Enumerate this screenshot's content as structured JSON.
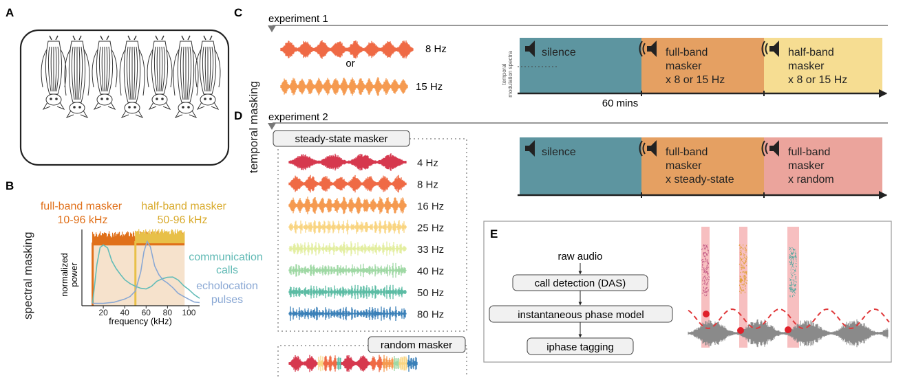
{
  "panels": {
    "a": "A",
    "b": "B",
    "c": "C",
    "d": "D",
    "e": "E"
  },
  "side_labels": {
    "spectral": "spectral masking",
    "temporal": "temporal masking"
  },
  "panel_b": {
    "full_band_title": "full-band masker",
    "full_band_range": "10-96 kHz",
    "half_band_title": "half-band masker",
    "half_band_range": "50-96 kHz",
    "comm_line1": "communication",
    "comm_line2": "calls",
    "echo_line1": "echolocation",
    "echo_line2": "pulses",
    "ylabel_line1": "normalized",
    "ylabel_line2": "power",
    "xlabel": "frequency (kHz)",
    "colors": {
      "full": "#e0701a",
      "half": "#e8c048",
      "comm": "#62bcb8",
      "echo": "#8aa8d4",
      "fill": "#f6e2cc"
    }
  },
  "chart_data": {
    "type": "line",
    "xlabel": "frequency (kHz)",
    "ylabel": "normalized power",
    "xlim": [
      0,
      110
    ],
    "ylim": [
      0,
      1
    ],
    "x_ticks": [
      20,
      40,
      60,
      80,
      100
    ],
    "series": [
      {
        "name": "communication calls",
        "x": [
          10,
          14,
          17,
          20,
          24,
          28,
          32,
          36,
          40,
          45,
          50,
          55,
          60,
          65,
          70,
          75,
          80,
          85,
          90,
          95,
          100,
          105,
          110
        ],
        "values": [
          0.02,
          0.55,
          0.78,
          0.84,
          0.78,
          0.6,
          0.5,
          0.42,
          0.35,
          0.3,
          0.27,
          0.25,
          0.24,
          0.27,
          0.33,
          0.38,
          0.4,
          0.38,
          0.34,
          0.28,
          0.22,
          0.16,
          0.1
        ]
      },
      {
        "name": "echolocation pulses",
        "x": [
          10,
          20,
          30,
          40,
          45,
          50,
          55,
          58,
          61,
          64,
          68,
          72,
          76,
          80,
          85,
          90,
          95,
          100,
          105,
          110
        ],
        "values": [
          0.02,
          0.03,
          0.05,
          0.08,
          0.12,
          0.2,
          0.45,
          0.75,
          0.88,
          0.8,
          0.55,
          0.42,
          0.35,
          0.3,
          0.24,
          0.18,
          0.13,
          0.09,
          0.06,
          0.04
        ]
      },
      {
        "name": "full-band masker",
        "x": [
          10,
          96
        ],
        "values": [
          0.97,
          0.97
        ]
      },
      {
        "name": "half-band masker",
        "x": [
          50,
          96
        ],
        "values": [
          1.0,
          1.0
        ]
      }
    ]
  },
  "panel_c": {
    "experiment": "experiment 1",
    "rate1": "8 Hz",
    "or": "or",
    "rate2": "15 Hz",
    "spectra_line1": "temporal",
    "spectra_line2": "modulation spectra",
    "duration": "60 mins",
    "blocks": [
      {
        "lines": [
          "silence"
        ],
        "color": "#5d95a0"
      },
      {
        "lines": [
          "full-band",
          "masker",
          "x 8 or 15 Hz"
        ],
        "color": "#e5a062"
      },
      {
        "lines": [
          "half-band",
          "masker",
          "x 8 or 15 Hz"
        ],
        "color": "#f6dd92"
      }
    ]
  },
  "panel_d": {
    "experiment": "experiment 2",
    "steady_title": "steady-state masker",
    "random_title": "random masker",
    "rates": [
      {
        "label": "4 Hz",
        "color": "#d6384e"
      },
      {
        "label": "8 Hz",
        "color": "#ef6a45"
      },
      {
        "label": "16 Hz",
        "color": "#f59a50"
      },
      {
        "label": "25 Hz",
        "color": "#f9d582"
      },
      {
        "label": "33 Hz",
        "color": "#e3eea0"
      },
      {
        "label": "40 Hz",
        "color": "#9fd8a4"
      },
      {
        "label": "50 Hz",
        "color": "#5cbca4"
      },
      {
        "label": "80 Hz",
        "color": "#3a80b8"
      }
    ],
    "blocks": [
      {
        "lines": [
          "silence"
        ],
        "color": "#5d95a0"
      },
      {
        "lines": [
          "full-band",
          "masker",
          "x steady-state"
        ],
        "color": "#e5a062"
      },
      {
        "lines": [
          "full-band",
          "masker",
          "x random"
        ],
        "color": "#eba49c"
      }
    ]
  },
  "panel_e": {
    "raw": "raw audio",
    "step1": "call detection (DAS)",
    "step2": "instantaneous phase model",
    "step3": "iphase tagging"
  }
}
